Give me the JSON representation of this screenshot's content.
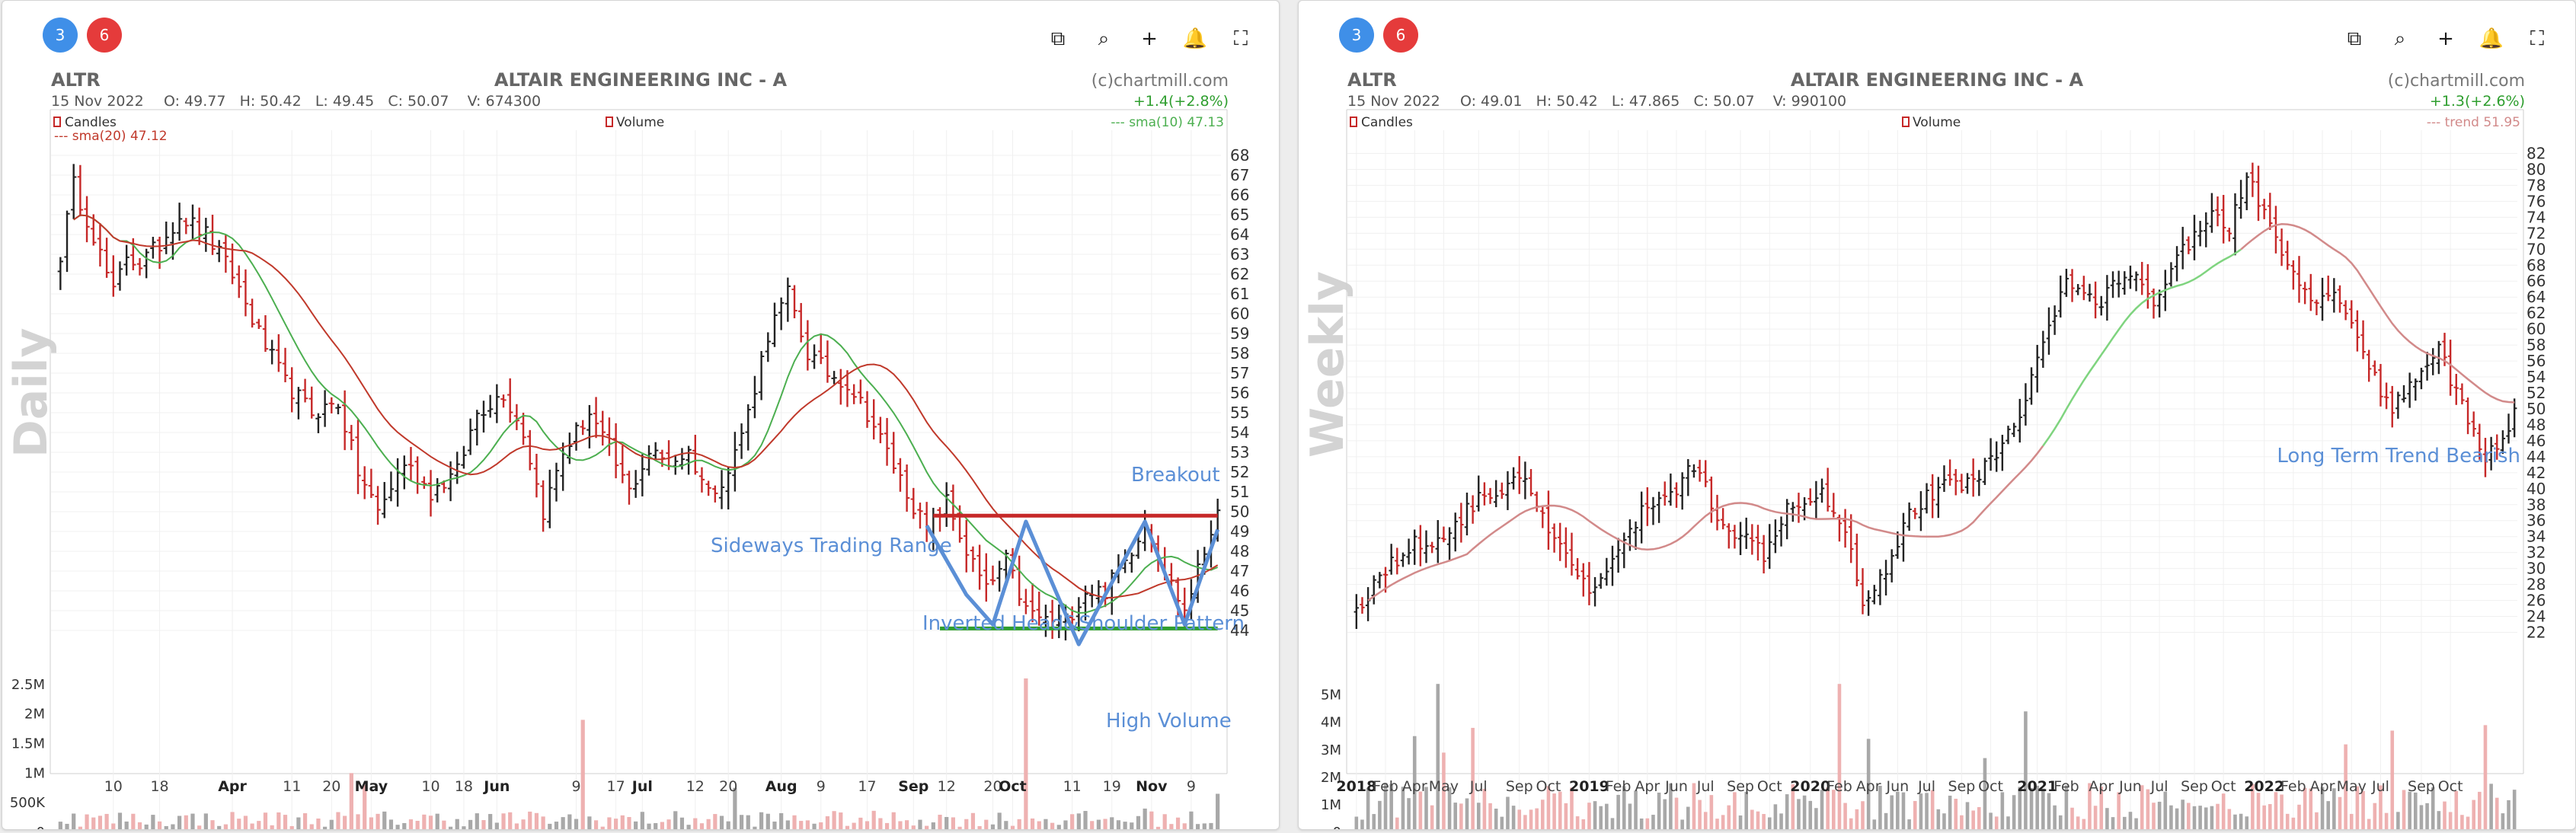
{
  "panels": [
    {
      "badges": {
        "left": "3",
        "right": "6"
      },
      "toolbar": [
        "external-link-icon",
        "search-icon",
        "plus-icon",
        "bell-icon",
        "fullscreen-icon"
      ],
      "watermark": "Daily",
      "header": {
        "symbol": "ALTR",
        "name": "ALTAIR ENGINEERING INC - A",
        "credit": "(c)chartmill.com",
        "date": "15 Nov 2022",
        "ohlcv": "O: 49.77   H: 50.42   L: 49.45   C: 50.07    V: 674300",
        "change": "+1.4(+2.8%)"
      },
      "legend": {
        "candles": "Candles",
        "volume": "Volume",
        "ma_short": "--- sma(10) 47.13",
        "ma_long": "--- sma(20) 47.12"
      },
      "annotations": {
        "breakout": "Breakout",
        "sideways": "Sideways Trading Range",
        "pattern": "Inverted Head&Shoulder Pattern",
        "volume": "High Volume"
      }
    },
    {
      "badges": {
        "left": "3",
        "right": "6"
      },
      "toolbar": [
        "external-link-icon",
        "search-icon",
        "plus-icon",
        "bell-icon",
        "fullscreen-icon"
      ],
      "watermark": "Weekly",
      "header": {
        "symbol": "ALTR",
        "name": "ALTAIR ENGINEERING INC - A",
        "credit": "(c)chartmill.com",
        "date": "15 Nov 2022",
        "ohlcv": "O: 49.01   H: 50.42   L: 47.865   C: 50.07    V: 990100",
        "change": "+1.3(+2.6%)"
      },
      "legend": {
        "candles": "Candles",
        "volume": "Volume",
        "trend": "--- trend 51.95"
      },
      "annotations": {
        "trend": "Long Term Trend Bearish"
      }
    }
  ],
  "chart_data": [
    {
      "type": "bar",
      "subtype": "ohlc-price-with-volume",
      "timeframe": "daily",
      "title": "ALTAIR ENGINEERING INC - A",
      "symbol": "ALTR",
      "colors": {
        "up": "#222222",
        "down": "#c62828",
        "sma10": "#4caf50",
        "sma20": "#c0392b",
        "annotation": "#5b8fd6",
        "breakout_line": "#c62828",
        "support_line": "#2e9e2e"
      },
      "price_axis": {
        "ylim": [
          43.5,
          68.5
        ],
        "ticks": [
          44,
          45,
          46,
          47,
          48,
          49,
          50,
          51,
          52,
          53,
          54,
          55,
          56,
          57,
          58,
          59,
          60,
          61,
          62,
          63,
          64,
          65,
          66,
          67,
          68
        ]
      },
      "volume_axis": {
        "ylim": [
          0,
          2600000
        ],
        "ticks": [
          0,
          500000,
          1000000,
          1500000,
          2000000,
          2500000
        ],
        "tick_labels": [
          "0",
          "500K",
          "1M",
          "1.5M",
          "2M",
          "2.5M"
        ]
      },
      "x_tick_labels": [
        "10",
        "18",
        "Apr",
        "11",
        "20",
        "May",
        "10",
        "18",
        "Jun",
        "9",
        "17",
        "Jul",
        "12",
        "20",
        "Aug",
        "9",
        "17",
        "Sep",
        "12",
        "20",
        "Oct",
        "11",
        "19",
        "Nov",
        "9"
      ],
      "x_tick_bold": [
        "Apr",
        "May",
        "Jun",
        "Jul",
        "Aug",
        "Sep",
        "Oct",
        "Nov"
      ],
      "x_tick_index": [
        8,
        15,
        26,
        35,
        41,
        47,
        56,
        61,
        66,
        78,
        84,
        88,
        96,
        101,
        109,
        115,
        122,
        129,
        134,
        141,
        144,
        153,
        159,
        165,
        171
      ],
      "n_bars": 176,
      "close_anchors": [
        [
          0,
          63
        ],
        [
          2,
          66.5
        ],
        [
          5,
          64
        ],
        [
          8,
          61
        ],
        [
          10,
          63
        ],
        [
          12,
          62.5
        ],
        [
          15,
          63.5
        ],
        [
          18,
          65
        ],
        [
          22,
          64
        ],
        [
          26,
          62
        ],
        [
          30,
          59
        ],
        [
          34,
          56.5
        ],
        [
          38,
          55
        ],
        [
          42,
          55.5
        ],
        [
          45,
          52
        ],
        [
          48,
          50
        ],
        [
          52,
          52.5
        ],
        [
          56,
          51
        ],
        [
          60,
          52
        ],
        [
          63,
          55
        ],
        [
          67,
          56
        ],
        [
          70,
          54
        ],
        [
          73,
          50
        ],
        [
          76,
          53
        ],
        [
          80,
          55
        ],
        [
          83,
          53
        ],
        [
          86,
          51
        ],
        [
          89,
          53
        ],
        [
          92,
          52.5
        ],
        [
          95,
          53
        ],
        [
          98,
          51
        ],
        [
          101,
          52
        ],
        [
          104,
          55
        ],
        [
          107,
          59
        ],
        [
          110,
          61
        ],
        [
          113,
          58
        ],
        [
          116,
          57
        ],
        [
          119,
          56.5
        ],
        [
          122,
          55
        ],
        [
          125,
          53
        ],
        [
          128,
          51
        ],
        [
          131,
          49
        ],
        [
          134,
          50.5
        ],
        [
          137,
          48
        ],
        [
          140,
          46
        ],
        [
          143,
          47.5
        ],
        [
          146,
          45
        ],
        [
          149,
          44.5
        ],
        [
          152,
          44.5
        ],
        [
          155,
          46
        ],
        [
          158,
          46
        ],
        [
          161,
          47.5
        ],
        [
          164,
          49.5
        ],
        [
          167,
          47
        ],
        [
          170,
          45
        ],
        [
          173,
          48
        ],
        [
          175,
          50.07
        ]
      ],
      "sma10_last": 47.13,
      "sma20_last": 47.12,
      "breakout_level": 49.8,
      "support_level": 44.1,
      "pattern_path": [
        [
          131,
          49.3
        ],
        [
          137,
          45.8
        ],
        [
          141,
          44.3
        ],
        [
          146,
          49.5
        ],
        [
          151,
          45.6
        ],
        [
          154,
          43.3
        ],
        [
          158,
          45.8
        ],
        [
          164,
          49.5
        ],
        [
          170,
          44.3
        ],
        [
          175,
          49.1
        ]
      ],
      "volume_spikes": [
        [
          79,
          1900000
        ],
        [
          44,
          1000000
        ],
        [
          46,
          800000
        ],
        [
          102,
          750000
        ],
        [
          146,
          3800000
        ],
        [
          164,
          400000
        ],
        [
          175,
          650000
        ]
      ]
    },
    {
      "type": "bar",
      "subtype": "ohlc-price-with-volume",
      "timeframe": "weekly",
      "title": "ALTAIR ENGINEERING INC - A",
      "symbol": "ALTR",
      "colors": {
        "up": "#222222",
        "down": "#c62828",
        "trend": "#d28a8a",
        "trend_rising": "#7fd47f",
        "annotation": "#5b8fd6"
      },
      "price_axis": {
        "ylim": [
          21,
          83
        ],
        "ticks": [
          22,
          24,
          26,
          28,
          30,
          32,
          34,
          36,
          38,
          40,
          42,
          44,
          46,
          48,
          50,
          52,
          54,
          56,
          58,
          60,
          62,
          64,
          66,
          68,
          70,
          72,
          74,
          76,
          78,
          80,
          82
        ]
      },
      "volume_axis": {
        "ylim": [
          0,
          5600000
        ],
        "ticks": [
          0,
          1000000,
          2000000,
          3000000,
          4000000,
          5000000
        ],
        "tick_labels": [
          "0",
          "1M",
          "2M",
          "3M",
          "4M",
          "5M"
        ]
      },
      "x_tick_labels": [
        "2018",
        "Feb",
        "Apr",
        "May",
        "Jul",
        "Sep",
        "Oct",
        "2019",
        "Feb",
        "Apr",
        "Jun",
        "Jul",
        "Sep",
        "Oct",
        "2020",
        "Feb",
        "Apr",
        "Jun",
        "Jul",
        "Sep",
        "Oct",
        "2021",
        "Feb",
        "Apr",
        "Jun",
        "Jul",
        "Sep",
        "Oct",
        "2022",
        "Feb",
        "Apr",
        "May",
        "Jul",
        "Sep",
        "Oct"
      ],
      "x_tick_bold": [
        "2018",
        "2019",
        "2020",
        "2021",
        "2022"
      ],
      "x_tick_index": [
        0,
        5,
        10,
        15,
        21,
        28,
        33,
        40,
        45,
        50,
        55,
        60,
        66,
        71,
        78,
        83,
        88,
        93,
        98,
        104,
        109,
        117,
        122,
        128,
        133,
        138,
        144,
        149,
        156,
        161,
        166,
        171,
        176,
        183,
        188
      ],
      "n_bars": 200,
      "close_anchors": [
        [
          0,
          25
        ],
        [
          5,
          30
        ],
        [
          10,
          33
        ],
        [
          15,
          34
        ],
        [
          20,
          38
        ],
        [
          25,
          40
        ],
        [
          28,
          42
        ],
        [
          32,
          36
        ],
        [
          37,
          30
        ],
        [
          40,
          27
        ],
        [
          45,
          32
        ],
        [
          50,
          38
        ],
        [
          55,
          40
        ],
        [
          58,
          43
        ],
        [
          62,
          37
        ],
        [
          66,
          34
        ],
        [
          70,
          32
        ],
        [
          74,
          38
        ],
        [
          78,
          39
        ],
        [
          80,
          40
        ],
        [
          84,
          35
        ],
        [
          87,
          26
        ],
        [
          91,
          30
        ],
        [
          95,
          37
        ],
        [
          100,
          40
        ],
        [
          105,
          41
        ],
        [
          110,
          44
        ],
        [
          114,
          50
        ],
        [
          118,
          58
        ],
        [
          122,
          66
        ],
        [
          127,
          63
        ],
        [
          132,
          67
        ],
        [
          137,
          64
        ],
        [
          142,
          70
        ],
        [
          146,
          74
        ],
        [
          150,
          73
        ],
        [
          153,
          79
        ],
        [
          156,
          75
        ],
        [
          160,
          67
        ],
        [
          165,
          63
        ],
        [
          169,
          64
        ],
        [
          174,
          55
        ],
        [
          178,
          50
        ],
        [
          182,
          54
        ],
        [
          186,
          58
        ],
        [
          190,
          50
        ],
        [
          194,
          44
        ],
        [
          197,
          46
        ],
        [
          199,
          50.07
        ]
      ],
      "trend_last": 51.95,
      "volume_spikes": [
        [
          10,
          3500000
        ],
        [
          14,
          5400000
        ],
        [
          15,
          2900000
        ],
        [
          20,
          3800000
        ],
        [
          83,
          5400000
        ],
        [
          88,
          3400000
        ],
        [
          108,
          2700000
        ],
        [
          115,
          4400000
        ],
        [
          170,
          3200000
        ],
        [
          178,
          3700000
        ],
        [
          194,
          3900000
        ]
      ]
    }
  ]
}
